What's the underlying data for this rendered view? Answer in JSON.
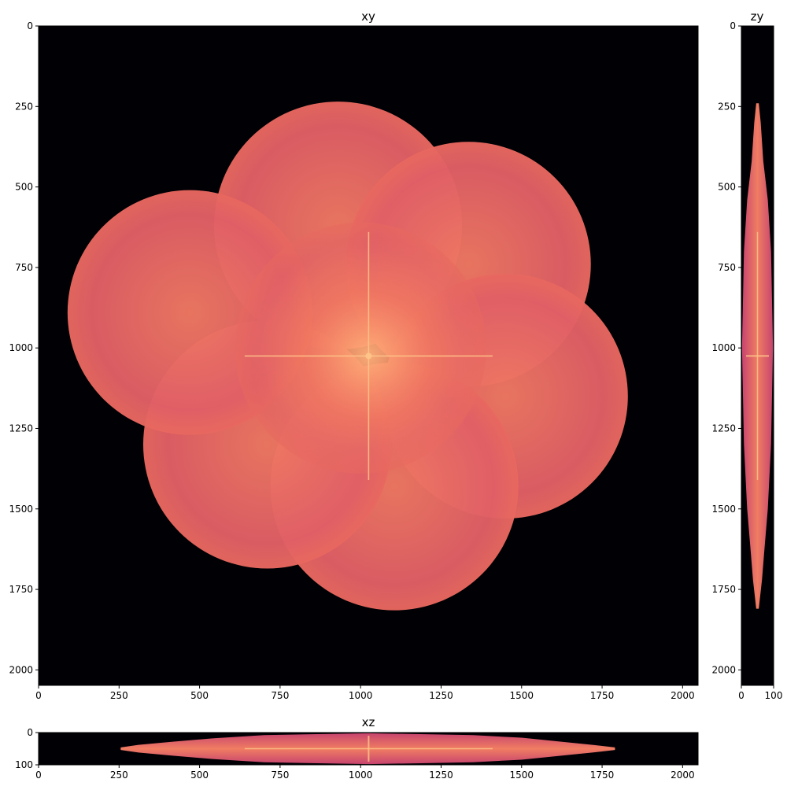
{
  "figure_colors": {
    "background": "#000005",
    "petal": "#e96a62",
    "petal_dark": "#d7566a",
    "center_glow": "#ff9c72",
    "streak": "#ffc58a",
    "axis": "#000000"
  },
  "chart_data": [
    {
      "type": "heatmap",
      "title": "xy",
      "colormap": "magma",
      "xlim": [
        0,
        2048
      ],
      "ylim": [
        2048,
        0
      ],
      "xticks": [
        0,
        250,
        500,
        750,
        1000,
        1250,
        1500,
        1750,
        2000
      ],
      "yticks": [
        0,
        250,
        500,
        750,
        1000,
        1250,
        1500,
        1750,
        2000
      ],
      "blobs": [
        {
          "cx": 930,
          "cy": 620,
          "r": 385
        },
        {
          "cx": 1335,
          "cy": 740,
          "r": 380
        },
        {
          "cx": 1450,
          "cy": 1150,
          "r": 380
        },
        {
          "cx": 1105,
          "cy": 1430,
          "r": 385
        },
        {
          "cx": 710,
          "cy": 1300,
          "r": 385
        },
        {
          "cx": 470,
          "cy": 890,
          "r": 380
        },
        {
          "cx": 1000,
          "cy": 1000,
          "r": 390
        }
      ],
      "cross": {
        "x": 1025,
        "y": 1025,
        "x_span": [
          640,
          1410
        ],
        "y_span": [
          640,
          1410
        ]
      }
    },
    {
      "type": "heatmap",
      "title": "zy",
      "colormap": "magma",
      "xlim": [
        0,
        100
      ],
      "ylim": [
        2048,
        0
      ],
      "xticks": [
        0,
        100
      ],
      "yticks": [
        0,
        250,
        500,
        750,
        1000,
        1250,
        1500,
        1750,
        2000
      ],
      "profile": [
        {
          "pos": 240,
          "half_width": 4
        },
        {
          "pos": 300,
          "half_width": 10
        },
        {
          "pos": 420,
          "half_width": 18
        },
        {
          "pos": 540,
          "half_width": 32
        },
        {
          "pos": 700,
          "half_width": 42
        },
        {
          "pos": 1000,
          "half_width": 48
        },
        {
          "pos": 1300,
          "half_width": 42
        },
        {
          "pos": 1500,
          "half_width": 32
        },
        {
          "pos": 1620,
          "half_width": 22
        },
        {
          "pos": 1720,
          "half_width": 14
        },
        {
          "pos": 1810,
          "half_width": 4
        }
      ],
      "center": 50,
      "streak": {
        "span": [
          640,
          1410
        ],
        "at": 50
      }
    },
    {
      "type": "heatmap",
      "title": "xz",
      "colormap": "magma",
      "xlim": [
        0,
        2048
      ],
      "ylim": [
        100,
        0
      ],
      "xticks": [
        0,
        250,
        500,
        750,
        1000,
        1250,
        1500,
        1750,
        2000
      ],
      "yticks": [
        0,
        100
      ],
      "profile": [
        {
          "pos": 255,
          "half_width": 4
        },
        {
          "pos": 310,
          "half_width": 12
        },
        {
          "pos": 420,
          "half_width": 22
        },
        {
          "pos": 540,
          "half_width": 32
        },
        {
          "pos": 700,
          "half_width": 42
        },
        {
          "pos": 1025,
          "half_width": 48
        },
        {
          "pos": 1350,
          "half_width": 42
        },
        {
          "pos": 1500,
          "half_width": 34
        },
        {
          "pos": 1620,
          "half_width": 22
        },
        {
          "pos": 1720,
          "half_width": 12
        },
        {
          "pos": 1790,
          "half_width": 4
        }
      ],
      "center": 50,
      "streak": {
        "span": [
          640,
          1410
        ],
        "at": 50
      }
    }
  ]
}
